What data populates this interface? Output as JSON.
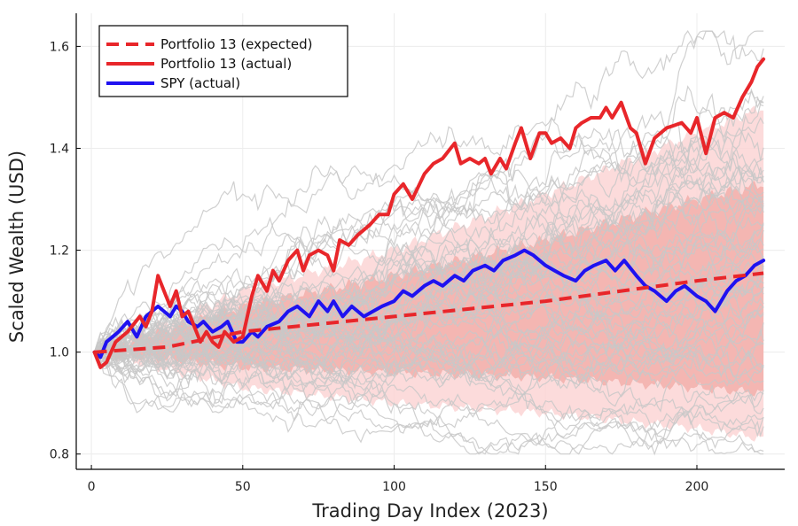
{
  "chart_data": {
    "type": "line",
    "xlabel": "Trading Day Index (2023)",
    "ylabel": "Scaled Wealth (USD)",
    "xlim": [
      -5,
      229
    ],
    "ylim": [
      0.77,
      1.665
    ],
    "x_ticks": [
      0,
      50,
      100,
      150,
      200
    ],
    "y_ticks": [
      0.8,
      1.0,
      1.2,
      1.4,
      1.6
    ],
    "x_tick_labels": [
      "0",
      "50",
      "100",
      "150",
      "200"
    ],
    "y_tick_labels": [
      "0.8",
      "1.0",
      "1.2",
      "1.4",
      "1.6"
    ],
    "grid": true,
    "legend_position": "top-left",
    "n_days": 222,
    "simulated_paths": {
      "count": 60,
      "color": "#c8c8c8"
    },
    "bands": [
      {
        "name": "outer",
        "color": "#fbd5d5",
        "x": [
          1,
          50,
          100,
          150,
          200,
          222
        ],
        "lower": [
          1.0,
          0.93,
          0.9,
          0.88,
          0.85,
          0.83
        ],
        "upper": [
          1.0,
          1.12,
          1.2,
          1.31,
          1.43,
          1.48
        ]
      },
      {
        "name": "inner",
        "color": "#f2aaa4",
        "x": [
          1,
          50,
          100,
          150,
          200,
          222
        ],
        "lower": [
          1.0,
          0.97,
          0.96,
          0.95,
          0.93,
          0.92
        ],
        "upper": [
          1.0,
          1.09,
          1.15,
          1.22,
          1.3,
          1.33
        ]
      }
    ],
    "series": [
      {
        "name": "Portfolio 13 (expected)",
        "color": "#e8262a",
        "style": "dashed",
        "x": [
          1,
          25,
          50,
          75,
          100,
          125,
          150,
          175,
          200,
          222
        ],
        "y": [
          1.0,
          1.01,
          1.04,
          1.055,
          1.07,
          1.085,
          1.1,
          1.12,
          1.14,
          1.155
        ]
      },
      {
        "name": "Portfolio 13 (actual)",
        "color": "#e8262a",
        "style": "solid",
        "x": [
          1,
          3,
          5,
          8,
          12,
          16,
          18,
          20,
          22,
          24,
          26,
          28,
          30,
          32,
          34,
          36,
          38,
          40,
          42,
          44,
          47,
          50,
          53,
          55,
          58,
          60,
          62,
          65,
          68,
          70,
          72,
          75,
          78,
          80,
          82,
          85,
          88,
          92,
          95,
          98,
          100,
          103,
          106,
          110,
          113,
          116,
          120,
          122,
          125,
          128,
          130,
          132,
          135,
          137,
          140,
          142,
          145,
          148,
          150,
          152,
          155,
          158,
          160,
          162,
          165,
          168,
          170,
          172,
          175,
          178,
          180,
          183,
          186,
          190,
          195,
          198,
          200,
          203,
          206,
          209,
          212,
          215,
          218,
          220,
          222
        ],
        "y": [
          1.0,
          0.97,
          0.98,
          1.02,
          1.04,
          1.07,
          1.05,
          1.08,
          1.15,
          1.12,
          1.09,
          1.12,
          1.07,
          1.08,
          1.05,
          1.02,
          1.04,
          1.02,
          1.01,
          1.04,
          1.02,
          1.03,
          1.11,
          1.15,
          1.12,
          1.16,
          1.14,
          1.18,
          1.2,
          1.16,
          1.19,
          1.2,
          1.19,
          1.16,
          1.22,
          1.21,
          1.23,
          1.25,
          1.27,
          1.27,
          1.31,
          1.33,
          1.3,
          1.35,
          1.37,
          1.38,
          1.41,
          1.37,
          1.38,
          1.37,
          1.38,
          1.35,
          1.38,
          1.36,
          1.41,
          1.44,
          1.38,
          1.43,
          1.43,
          1.41,
          1.42,
          1.4,
          1.44,
          1.45,
          1.46,
          1.46,
          1.48,
          1.46,
          1.49,
          1.44,
          1.43,
          1.37,
          1.42,
          1.44,
          1.45,
          1.43,
          1.46,
          1.39,
          1.46,
          1.47,
          1.46,
          1.5,
          1.53,
          1.56,
          1.575
        ]
      },
      {
        "name": "SPY (actual)",
        "color": "#1f12f0",
        "style": "solid",
        "x": [
          1,
          3,
          5,
          7,
          9,
          12,
          15,
          18,
          20,
          22,
          24,
          26,
          28,
          30,
          32,
          35,
          37,
          40,
          43,
          45,
          48,
          50,
          53,
          55,
          58,
          62,
          65,
          68,
          72,
          75,
          78,
          80,
          83,
          86,
          90,
          93,
          96,
          100,
          103,
          106,
          110,
          113,
          116,
          120,
          123,
          126,
          130,
          133,
          136,
          140,
          143,
          146,
          150,
          153,
          156,
          160,
          163,
          166,
          170,
          173,
          176,
          180,
          183,
          186,
          190,
          193,
          196,
          200,
          203,
          206,
          210,
          213,
          216,
          219,
          222
        ],
        "y": [
          1.0,
          0.99,
          1.02,
          1.03,
          1.04,
          1.06,
          1.03,
          1.07,
          1.08,
          1.09,
          1.08,
          1.07,
          1.09,
          1.08,
          1.06,
          1.05,
          1.06,
          1.04,
          1.05,
          1.06,
          1.02,
          1.02,
          1.04,
          1.03,
          1.05,
          1.06,
          1.08,
          1.09,
          1.07,
          1.1,
          1.08,
          1.1,
          1.07,
          1.09,
          1.07,
          1.08,
          1.09,
          1.1,
          1.12,
          1.11,
          1.13,
          1.14,
          1.13,
          1.15,
          1.14,
          1.16,
          1.17,
          1.16,
          1.18,
          1.19,
          1.2,
          1.19,
          1.17,
          1.16,
          1.15,
          1.14,
          1.16,
          1.17,
          1.18,
          1.16,
          1.18,
          1.15,
          1.13,
          1.12,
          1.1,
          1.12,
          1.13,
          1.11,
          1.1,
          1.08,
          1.12,
          1.14,
          1.15,
          1.17,
          1.18
        ]
      }
    ]
  }
}
